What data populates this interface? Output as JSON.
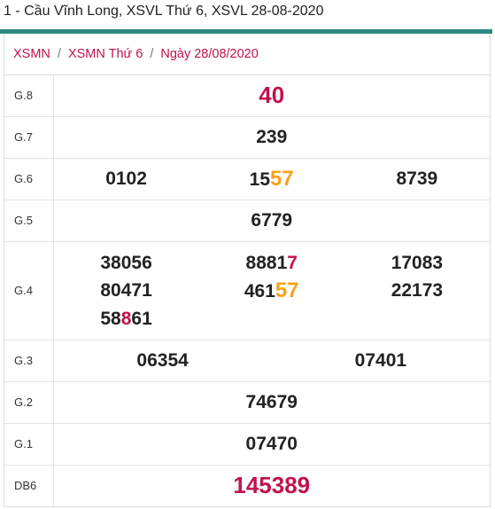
{
  "title": "1 - Cầu Vĩnh Long, XSVL Thứ 6, XSVL 28-08-2020",
  "breadcrumb": {
    "items": [
      "XSMN",
      "XSMN Thứ 6",
      "Ngày 28/08/2020"
    ],
    "separator": "/"
  },
  "prizes": {
    "g8": {
      "label": "G.8",
      "value": "40"
    },
    "g7": {
      "label": "G.7",
      "value": "239"
    },
    "g6": {
      "label": "G.6",
      "values": [
        "0102",
        "1557",
        "8739"
      ]
    },
    "g5": {
      "label": "G.5",
      "value": "6779"
    },
    "g4": {
      "label": "G.4",
      "values": [
        "38056",
        "88817",
        "17083",
        "80471",
        "46157",
        "22173",
        "58861"
      ]
    },
    "g3": {
      "label": "G.3",
      "values": [
        "06354",
        "07401"
      ]
    },
    "g2": {
      "label": "G.2",
      "value": "74679"
    },
    "g1": {
      "label": "G.1",
      "value": "07470"
    },
    "db": {
      "label": "DB6",
      "value": "145389"
    }
  },
  "colors": {
    "accent_bar": "#2b8a83",
    "red": "#c0134b",
    "orange": "#f7a21b"
  }
}
